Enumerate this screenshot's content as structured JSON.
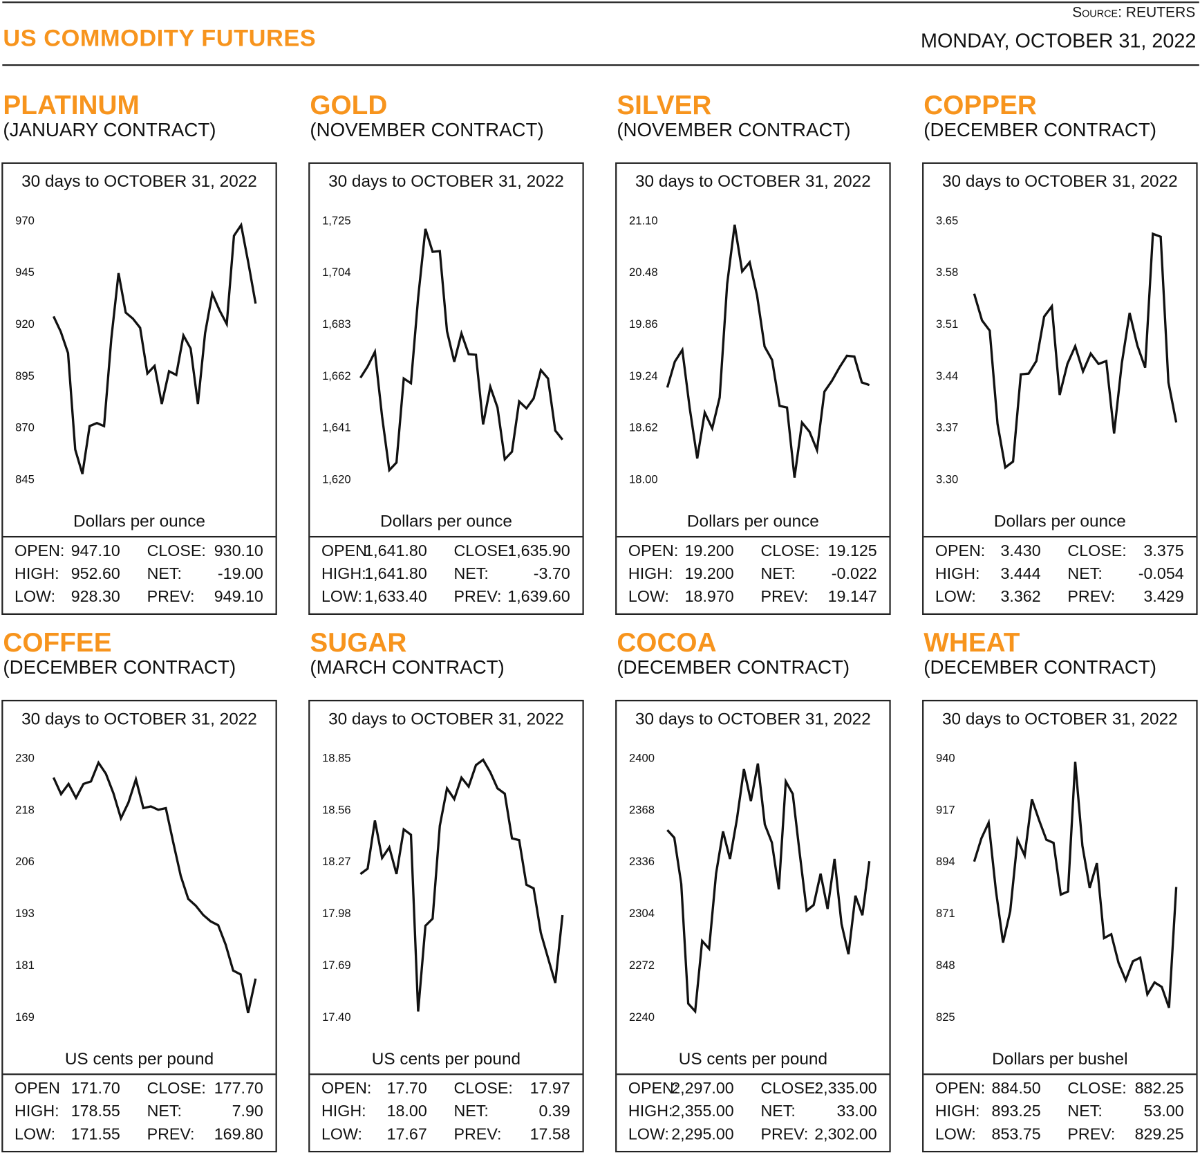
{
  "header": {
    "title": "US COMMODITY FUTURES",
    "source": "Source: REUTERS",
    "date": "MONDAY, OCTOBER 31, 2022"
  },
  "colors": {
    "accent": "#f7941d",
    "line": "#111111"
  },
  "chart_data": [
    {
      "type": "line",
      "name": "PLATINUM",
      "contract": "(JANUARY CONTRACT)",
      "title": "30 days to OCTOBER 31, 2022",
      "ylabel": "Dollars per ounce",
      "yticks": [
        "970",
        "945",
        "920",
        "895",
        "870",
        "845"
      ],
      "ylim": [
        845,
        970
      ],
      "values": [
        923.7,
        916.3,
        906,
        859.4,
        847.6,
        870.7,
        872.2,
        870.7,
        912.7,
        944.6,
        925.5,
        922.6,
        918.2,
        896.1,
        899.8,
        881.4,
        897.2,
        895.4,
        914.5,
        908.2,
        881.4,
        915.6,
        934.7,
        926.6,
        920,
        962.6,
        967.8,
        949.4,
        929.9
      ],
      "stats": [
        [
          "OPEN:",
          "947.10",
          "CLOSE:",
          "930.10"
        ],
        [
          "HIGH:",
          "952.60",
          "NET:",
          "-19.00"
        ],
        [
          "LOW:",
          "928.30",
          "PREV:",
          "949.10"
        ]
      ]
    },
    {
      "type": "line",
      "name": "GOLD",
      "contract": "(NOVEMBER CONTRACT)",
      "title": "30 days to OCTOBER 31, 2022",
      "ylabel": "Dollars per ounce",
      "yticks": [
        "1,725",
        "1,704",
        "1,683",
        "1,662",
        "1,641",
        "1,620"
      ],
      "ylim": [
        1620,
        1725
      ],
      "values": [
        1661.2,
        1665.8,
        1671.7,
        1645.4,
        1623.7,
        1626.8,
        1660.9,
        1659,
        1693.7,
        1721.6,
        1712.3,
        1712.6,
        1680.1,
        1667.7,
        1679.2,
        1670.8,
        1670.5,
        1642.3,
        1657.5,
        1649.1,
        1628.1,
        1631.2,
        1651.6,
        1648.8,
        1652.8,
        1664.3,
        1660.9,
        1639.8,
        1636.1
      ],
      "stats": [
        [
          "OPEN:",
          "1,641.80",
          "CLOSE:",
          "1,635.90"
        ],
        [
          "HIGH:",
          "1,641.80",
          "NET:",
          "-3.70"
        ],
        [
          "LOW:",
          "1,633.40",
          "PREV:",
          "1,639.60"
        ]
      ]
    },
    {
      "type": "line",
      "name": "SILVER",
      "contract": "(NOVEMBER CONTRACT)",
      "title": "30 days to OCTOBER 31, 2022",
      "ylabel": "Dollars per ounce",
      "yticks": [
        "21.10",
        "20.48",
        "19.86",
        "19.24",
        "18.62",
        "18.00"
      ],
      "ylim": [
        18.0,
        21.1
      ],
      "values": [
        19.1,
        19.41,
        19.55,
        18.85,
        18.25,
        18.8,
        18.61,
        18.98,
        20.34,
        21.05,
        20.49,
        20.6,
        20.2,
        19.59,
        19.43,
        18.88,
        18.86,
        18.02,
        18.68,
        18.57,
        18.35,
        19.05,
        19.18,
        19.34,
        19.48,
        19.47,
        19.16,
        19.13
      ],
      "stats": [
        [
          "OPEN:",
          "19.200",
          "CLOSE:",
          "19.125"
        ],
        [
          "HIGH:",
          "19.200",
          "NET:",
          "-0.022"
        ],
        [
          "LOW:",
          "18.970",
          "PREV:",
          "19.147"
        ]
      ]
    },
    {
      "type": "line",
      "name": "COPPER",
      "contract": "(DECEMBER CONTRACT)",
      "title": "30 days to OCTOBER 31, 2022",
      "ylabel": "Dollars per ounce",
      "yticks": [
        "3.65",
        "3.58",
        "3.51",
        "3.44",
        "3.37",
        "3.30"
      ],
      "ylim": [
        3.3,
        3.65
      ],
      "values": [
        3.551,
        3.515,
        3.501,
        3.375,
        3.316,
        3.324,
        3.442,
        3.443,
        3.46,
        3.52,
        3.534,
        3.414,
        3.456,
        3.48,
        3.446,
        3.47,
        3.456,
        3.46,
        3.362,
        3.457,
        3.525,
        3.481,
        3.451,
        3.632,
        3.628,
        3.431,
        3.377
      ],
      "stats": [
        [
          "OPEN:",
          "3.430",
          "CLOSE:",
          "3.375"
        ],
        [
          "HIGH:",
          "3.444",
          "NET:",
          "-0.054"
        ],
        [
          "LOW:",
          "3.362",
          "PREV:",
          "3.429"
        ]
      ]
    },
    {
      "type": "line",
      "name": "COFFEE",
      "contract": "(DECEMBER CONTRACT)",
      "title": "30 days to OCTOBER 31, 2022",
      "ylabel": "US cents per pound",
      "yticks": [
        "230",
        "218",
        "206",
        "193",
        "181",
        "169"
      ],
      "ylim": [
        169,
        230
      ],
      "values": [
        225.4,
        221.5,
        223.9,
        220.6,
        223.9,
        224.5,
        228.9,
        226.3,
        221.7,
        215.8,
        219.5,
        225.0,
        218.2,
        218.6,
        217.8,
        218.2,
        210.1,
        202.2,
        196.8,
        195.2,
        193.0,
        191.5,
        190.6,
        186.0,
        179.9,
        179.0,
        169.9,
        178.0
      ],
      "stats": [
        [
          "OPEN",
          "171.70",
          "CLOSE:",
          "177.70"
        ],
        [
          "HIGH:",
          "178.55",
          "NET:",
          "7.90"
        ],
        [
          "LOW:",
          "171.55",
          "PREV:",
          "169.80"
        ]
      ]
    },
    {
      "type": "line",
      "name": "SUGAR",
      "contract": "(MARCH CONTRACT)",
      "title": "30 days to OCTOBER 31, 2022",
      "ylabel": "US cents per pound",
      "yticks": [
        "18.85",
        "18.56",
        "18.27",
        "17.98",
        "17.69",
        "17.40"
      ],
      "ylim": [
        17.4,
        18.85
      ],
      "values": [
        18.2,
        18.23,
        18.5,
        18.29,
        18.35,
        18.2,
        18.45,
        18.42,
        17.43,
        17.91,
        17.95,
        18.47,
        18.68,
        18.62,
        18.74,
        18.69,
        18.81,
        18.84,
        18.77,
        18.68,
        18.65,
        18.4,
        18.39,
        18.14,
        18.12,
        17.87,
        17.73,
        17.59,
        17.97
      ],
      "stats": [
        [
          "OPEN:",
          "17.70",
          "CLOSE:",
          "17.97"
        ],
        [
          "HIGH:",
          "18.00",
          "NET:",
          "0.39"
        ],
        [
          "LOW:",
          "17.67",
          "PREV:",
          "17.58"
        ]
      ]
    },
    {
      "type": "line",
      "name": "COCOA",
      "contract": "(DECEMBER CONTRACT)",
      "title": "30 days to OCTOBER 31, 2022",
      "ylabel": "US cents per pound",
      "yticks": [
        "2400",
        "2368",
        "2336",
        "2304",
        "2272",
        "2240"
      ],
      "ylim": [
        2240,
        2400
      ],
      "values": [
        2355.5,
        2350.7,
        2322.2,
        2248.2,
        2243.4,
        2286.9,
        2282.1,
        2328.5,
        2354.6,
        2337.6,
        2362.3,
        2393.2,
        2373.4,
        2396.6,
        2358.9,
        2347.8,
        2318.8,
        2385.5,
        2377.8,
        2341.0,
        2305.7,
        2309.1,
        2328.5,
        2306.7,
        2337.6,
        2297.5,
        2278.7,
        2314.9,
        2302.8,
        2336.2
      ],
      "stats": [
        [
          "OPEN:",
          "2,297.00",
          "CLOSE:",
          "2,335.00"
        ],
        [
          "HIGH:",
          "2,355.00",
          "NET:",
          "33.00"
        ],
        [
          "LOW:",
          "2,295.00",
          "PREV:",
          "2,302.00"
        ]
      ]
    },
    {
      "type": "line",
      "name": "WHEAT",
      "contract": "(DECEMBER CONTRACT)",
      "title": "30 days to OCTOBER 31, 2022",
      "ylabel": "Dollars per bushel",
      "yticks": [
        "940",
        "917",
        "894",
        "871",
        "848",
        "825"
      ],
      "ylim": [
        825,
        940
      ],
      "values": [
        894.0,
        904.3,
        911.3,
        881.3,
        858.0,
        872.0,
        903.7,
        896.7,
        921.7,
        912.3,
        903.7,
        902.3,
        879.3,
        880.7,
        938.3,
        901.0,
        882.3,
        893.3,
        860.0,
        861.7,
        849.0,
        841.3,
        849.7,
        851.3,
        835.0,
        840.3,
        838.3,
        829.0,
        882.7
      ],
      "stats": [
        [
          "OPEN:",
          "884.50",
          "CLOSE:",
          "882.25"
        ],
        [
          "HIGH:",
          "893.25",
          "NET:",
          "53.00"
        ],
        [
          "LOW:",
          "853.75",
          "PREV:",
          "829.25"
        ]
      ]
    }
  ]
}
